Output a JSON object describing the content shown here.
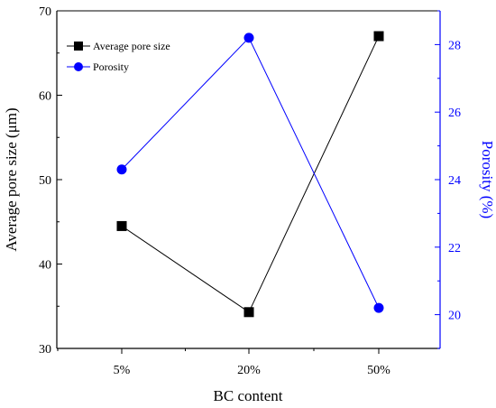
{
  "chart_data": {
    "type": "line",
    "categories": [
      "5%",
      "20%",
      "50%"
    ],
    "xlabel": "BC content",
    "series": [
      {
        "name": "Average pore size",
        "axis": "left",
        "color": "#000000",
        "marker": "square",
        "values": [
          44.5,
          34.3,
          67.0
        ]
      },
      {
        "name": "Porosity",
        "axis": "right",
        "color": "#0000ff",
        "marker": "circle",
        "values": [
          24.3,
          28.2,
          20.2
        ]
      }
    ],
    "y_left": {
      "label": "Average pore size (μm)",
      "ylim": [
        30,
        70
      ],
      "ticks": [
        30,
        40,
        50,
        60,
        70
      ],
      "color": "#000000"
    },
    "y_right": {
      "label": "Porosity (%)",
      "ylim": [
        19,
        29
      ],
      "ticks": [
        20,
        22,
        24,
        26,
        28
      ],
      "color": "#0000ff"
    },
    "legend": {
      "placement": "top-left"
    },
    "grid": false
  }
}
